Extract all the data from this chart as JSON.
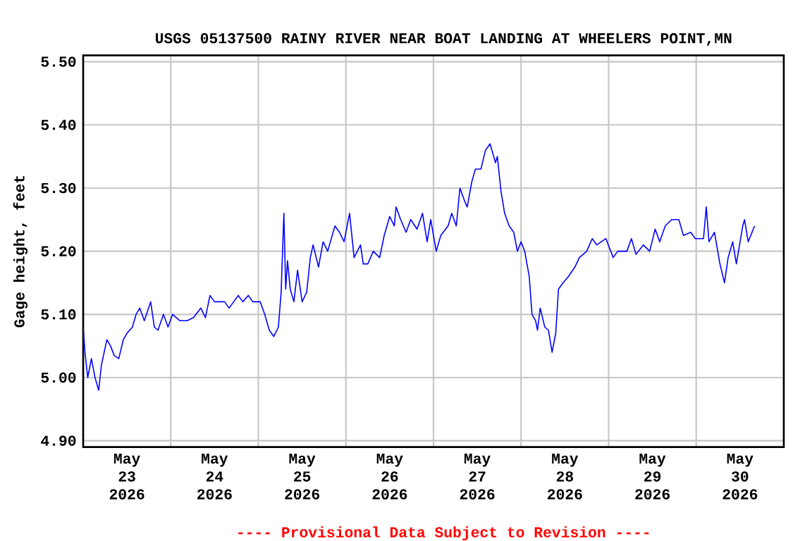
{
  "chart_data": {
    "type": "line",
    "title": "USGS 05137500 RAINY RIVER NEAR BOAT LANDING AT WHEELERS POINT,MN",
    "ylabel": "Gage height, feet",
    "annotations": [
      "---- Provisional Data Subject to Revision ----"
    ],
    "xlim": [
      "2026-05-23T00:00",
      "2026-05-31T00:00"
    ],
    "xticks": [
      {
        "value": "2026-05-23T12:00",
        "label": "May 23 2026"
      },
      {
        "value": "2026-05-24T12:00",
        "label": "May 24 2026"
      },
      {
        "value": "2026-05-25T12:00",
        "label": "May 25 2026"
      },
      {
        "value": "2026-05-26T12:00",
        "label": "May 26 2026"
      },
      {
        "value": "2026-05-27T12:00",
        "label": "May 27 2026"
      },
      {
        "value": "2026-05-28T12:00",
        "label": "May 28 2026"
      },
      {
        "value": "2026-05-29T12:00",
        "label": "May 29 2026"
      },
      {
        "value": "2026-05-30T12:00",
        "label": "May 30 2026"
      },
      {
        "value": "2026-05-24T00:00",
        "label": null
      },
      {
        "value": "2026-05-25T00:00",
        "label": null
      },
      {
        "value": "2026-05-26T00:00",
        "label": null
      },
      {
        "value": "2026-05-27T00:00",
        "label": null
      },
      {
        "value": "2026-05-28T00:00",
        "label": null
      },
      {
        "value": "2026-05-29T00:00",
        "label": null
      },
      {
        "value": "2026-05-30T00:00",
        "label": null
      }
    ],
    "ylim": [
      4.89,
      5.51
    ],
    "yticks": [
      {
        "value": 4.9,
        "label": "4.90"
      },
      {
        "value": 5.0,
        "label": "5.00"
      },
      {
        "value": 5.1,
        "label": "5.10"
      },
      {
        "value": 5.2,
        "label": "5.20"
      },
      {
        "value": 5.3,
        "label": "5.30"
      },
      {
        "value": 5.4,
        "label": "5.40"
      },
      {
        "value": 5.5,
        "label": "5.50"
      }
    ],
    "grid": true,
    "marker": "none",
    "line_style": "solid",
    "x": [
      "2026-05-23T00:00",
      "2026-05-23T00:30",
      "2026-05-23T01:15",
      "2026-05-23T02:15",
      "2026-05-23T03:15",
      "2026-05-23T04:15",
      "2026-05-23T05:00",
      "2026-05-23T05:45",
      "2026-05-23T06:30",
      "2026-05-23T07:30",
      "2026-05-23T08:30",
      "2026-05-23T09:45",
      "2026-05-23T11:00",
      "2026-05-23T12:00",
      "2026-05-23T13:30",
      "2026-05-23T14:30",
      "2026-05-23T15:30",
      "2026-05-23T16:45",
      "2026-05-23T18:30",
      "2026-05-23T19:30",
      "2026-05-23T20:30",
      "2026-05-23T22:00",
      "2026-05-23T23:15",
      "2026-05-24T00:30",
      "2026-05-24T02:30",
      "2026-05-24T04:30",
      "2026-05-24T06:15",
      "2026-05-24T08:15",
      "2026-05-24T09:30",
      "2026-05-24T10:45",
      "2026-05-24T12:00",
      "2026-05-24T14:45",
      "2026-05-24T16:00",
      "2026-05-24T17:15",
      "2026-05-24T18:30",
      "2026-05-24T19:45",
      "2026-05-24T21:15",
      "2026-05-24T22:30",
      "2026-05-25T00:30",
      "2026-05-25T01:45",
      "2026-05-25T03:00",
      "2026-05-25T04:15",
      "2026-05-25T05:30",
      "2026-05-25T06:15",
      "2026-05-25T07:00",
      "2026-05-25T07:30",
      "2026-05-25T08:00",
      "2026-05-25T08:45",
      "2026-05-25T09:45",
      "2026-05-25T10:45",
      "2026-05-25T12:00",
      "2026-05-25T13:15",
      "2026-05-25T14:15",
      "2026-05-25T15:00",
      "2026-05-25T16:30",
      "2026-05-25T17:45",
      "2026-05-25T19:00",
      "2026-05-25T21:00",
      "2026-05-25T22:15",
      "2026-05-25T23:30",
      "2026-05-26T01:00",
      "2026-05-26T02:15",
      "2026-05-26T04:00",
      "2026-05-26T04:45",
      "2026-05-26T06:00",
      "2026-05-26T07:30",
      "2026-05-26T09:15",
      "2026-05-26T10:30",
      "2026-05-26T12:00",
      "2026-05-26T13:15",
      "2026-05-26T13:45",
      "2026-05-26T15:00",
      "2026-05-26T16:30",
      "2026-05-26T17:45",
      "2026-05-26T19:30",
      "2026-05-26T21:00",
      "2026-05-26T22:15",
      "2026-05-26T23:15",
      "2026-05-27T00:45",
      "2026-05-27T02:00",
      "2026-05-27T04:00",
      "2026-05-27T05:00",
      "2026-05-27T06:15",
      "2026-05-27T07:15",
      "2026-05-27T08:30",
      "2026-05-27T09:15",
      "2026-05-27T10:30",
      "2026-05-27T11:30",
      "2026-05-27T13:00",
      "2026-05-27T14:15",
      "2026-05-27T15:30",
      "2026-05-27T17:00",
      "2026-05-27T17:30",
      "2026-05-27T18:30",
      "2026-05-27T19:30",
      "2026-05-27T20:45",
      "2026-05-27T22:00",
      "2026-05-27T23:00",
      "2026-05-28T00:00",
      "2026-05-28T01:00",
      "2026-05-28T02:15",
      "2026-05-28T03:00",
      "2026-05-28T04:00",
      "2026-05-28T04:30",
      "2026-05-28T05:15",
      "2026-05-28T06:30",
      "2026-05-28T07:30",
      "2026-05-28T08:30",
      "2026-05-28T09:30",
      "2026-05-28T10:15",
      "2026-05-28T11:30",
      "2026-05-28T13:00",
      "2026-05-28T14:45",
      "2026-05-28T16:00",
      "2026-05-28T18:00",
      "2026-05-28T19:30",
      "2026-05-28T20:45",
      "2026-05-28T23:15",
      "2026-05-29T01:15",
      "2026-05-29T02:30",
      "2026-05-29T05:00",
      "2026-05-29T06:15",
      "2026-05-29T07:30",
      "2026-05-29T09:30",
      "2026-05-29T11:15",
      "2026-05-29T12:45",
      "2026-05-29T14:00",
      "2026-05-29T15:30",
      "2026-05-29T17:15",
      "2026-05-29T19:15",
      "2026-05-29T20:30",
      "2026-05-29T22:30",
      "2026-05-29T23:45",
      "2026-05-30T02:00",
      "2026-05-30T02:45",
      "2026-05-30T03:30",
      "2026-05-30T05:00",
      "2026-05-30T06:30",
      "2026-05-30T07:45",
      "2026-05-30T08:45",
      "2026-05-30T10:00",
      "2026-05-30T11:00",
      "2026-05-30T12:45",
      "2026-05-30T13:15",
      "2026-05-30T14:15",
      "2026-05-30T16:00"
    ],
    "series": [
      {
        "color": "#0000ff",
        "values": [
          5.08,
          5.04,
          5.0,
          5.03,
          5.0,
          4.98,
          5.02,
          5.04,
          5.06,
          5.05,
          5.035,
          5.03,
          5.06,
          5.07,
          5.08,
          5.1,
          5.11,
          5.09,
          5.12,
          5.08,
          5.075,
          5.1,
          5.08,
          5.1,
          5.09,
          5.09,
          5.095,
          5.11,
          5.095,
          5.13,
          5.12,
          5.12,
          5.11,
          5.12,
          5.13,
          5.12,
          5.13,
          5.12,
          5.12,
          5.1,
          5.075,
          5.065,
          5.08,
          5.135,
          5.26,
          5.14,
          5.185,
          5.14,
          5.12,
          5.17,
          5.12,
          5.135,
          5.19,
          5.21,
          5.175,
          5.215,
          5.2,
          5.24,
          5.23,
          5.215,
          5.26,
          5.19,
          5.21,
          5.18,
          5.18,
          5.2,
          5.19,
          5.225,
          5.255,
          5.24,
          5.27,
          5.25,
          5.23,
          5.25,
          5.235,
          5.26,
          5.215,
          5.25,
          5.2,
          5.225,
          5.24,
          5.26,
          5.24,
          5.3,
          5.28,
          5.27,
          5.31,
          5.33,
          5.33,
          5.36,
          5.37,
          5.34,
          5.35,
          5.295,
          5.26,
          5.24,
          5.23,
          5.2,
          5.215,
          5.2,
          5.16,
          5.1,
          5.09,
          5.075,
          5.11,
          5.08,
          5.075,
          5.04,
          5.07,
          5.14,
          5.15,
          5.16,
          5.175,
          5.19,
          5.2,
          5.22,
          5.21,
          5.22,
          5.19,
          5.2,
          5.2,
          5.22,
          5.195,
          5.21,
          5.2,
          5.235,
          5.215,
          5.24,
          5.25,
          5.25,
          5.225,
          5.23,
          5.22,
          5.22,
          5.27,
          5.215,
          5.23,
          5.18,
          5.15,
          5.19,
          5.215,
          5.18,
          5.24,
          5.25,
          5.215,
          5.24
        ]
      }
    ]
  }
}
